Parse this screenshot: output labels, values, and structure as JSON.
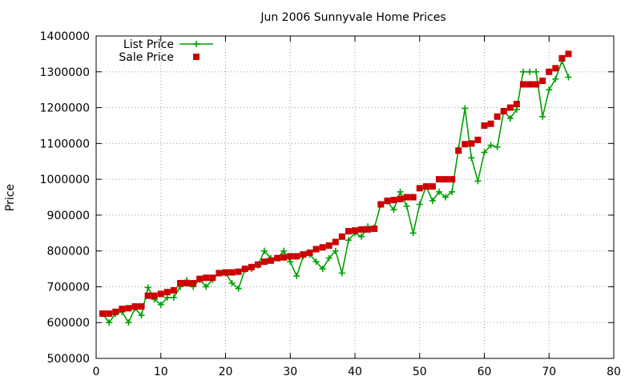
{
  "chart_data": {
    "type": "line",
    "title": "Jun 2006 Sunnyvale Home Prices",
    "xlabel": "",
    "ylabel": "Price",
    "xlim": [
      0,
      80
    ],
    "ylim": [
      500000,
      1400000
    ],
    "xticks": [
      0,
      10,
      20,
      30,
      40,
      50,
      60,
      70,
      80
    ],
    "yticks": [
      500000,
      600000,
      700000,
      800000,
      900000,
      1000000,
      1100000,
      1200000,
      1300000,
      1400000
    ],
    "xtick_labels": [
      "0",
      "10",
      "20",
      "30",
      "40",
      "50",
      "60",
      "70",
      "80"
    ],
    "ytick_labels": [
      "500000",
      "600000",
      "700000",
      "800000",
      "900000",
      "1000000",
      "1100000",
      "1200000",
      "1300000",
      "1400000"
    ],
    "grid": true,
    "legend_position": "top-left",
    "x": [
      1,
      2,
      3,
      4,
      5,
      6,
      7,
      8,
      9,
      10,
      11,
      12,
      13,
      14,
      15,
      16,
      17,
      18,
      19,
      20,
      21,
      22,
      23,
      24,
      25,
      26,
      27,
      28,
      29,
      30,
      31,
      32,
      33,
      34,
      35,
      36,
      37,
      38,
      39,
      40,
      41,
      42,
      43,
      44,
      45,
      46,
      47,
      48,
      49,
      50,
      51,
      52,
      53,
      54,
      55,
      56,
      57,
      58,
      59,
      60,
      61,
      62,
      63,
      64,
      65,
      66,
      67,
      68,
      69,
      70,
      71,
      72,
      73
    ],
    "series": [
      {
        "name": "List Price",
        "style": "line-plus",
        "color": "#00a000",
        "values": [
          625000,
          600000,
          625000,
          630000,
          600000,
          640000,
          620000,
          698000,
          665000,
          650000,
          670000,
          670000,
          700000,
          718000,
          700000,
          720000,
          700000,
          720000,
          738000,
          738000,
          710000,
          695000,
          748000,
          750000,
          760000,
          800000,
          780000,
          780000,
          800000,
          770000,
          730000,
          785000,
          790000,
          770000,
          750000,
          780000,
          800000,
          738000,
          830000,
          850000,
          840000,
          868000,
          865000,
          930000,
          938000,
          915000,
          965000,
          925000,
          850000,
          930000,
          980000,
          940000,
          965000,
          950000,
          965000,
          1085000,
          1198000,
          1060000,
          995000,
          1075000,
          1095000,
          1090000,
          1190000,
          1170000,
          1195000,
          1300000,
          1300000,
          1300000,
          1175000,
          1250000,
          1280000,
          1330000,
          1285000
        ]
      },
      {
        "name": "Sale Price",
        "style": "squares",
        "color": "#cc0000",
        "values": [
          625000,
          625000,
          630000,
          638000,
          640000,
          645000,
          645000,
          675000,
          675000,
          680000,
          685000,
          690000,
          710000,
          710000,
          710000,
          722000,
          725000,
          725000,
          738000,
          740000,
          740000,
          742000,
          750000,
          755000,
          762000,
          770000,
          773000,
          780000,
          782000,
          785000,
          785000,
          790000,
          795000,
          805000,
          810000,
          815000,
          825000,
          840000,
          855000,
          857000,
          860000,
          860000,
          862000,
          930000,
          940000,
          942000,
          945000,
          950000,
          950000,
          975000,
          980000,
          980000,
          1000000,
          1000000,
          1000000,
          1080000,
          1098000,
          1100000,
          1110000,
          1150000,
          1155000,
          1175000,
          1190000,
          1200000,
          1210000,
          1265000,
          1265000,
          1265000,
          1275000,
          1300000,
          1310000,
          1338000,
          1350000
        ]
      }
    ]
  }
}
